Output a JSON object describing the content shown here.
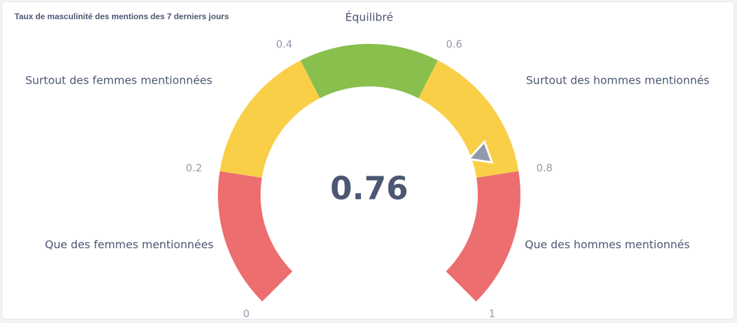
{
  "card": {
    "title": "Taux de masculinité des mentions des 7 derniers jours"
  },
  "chart_data": {
    "type": "gauge",
    "value": 0.76,
    "value_label": "0.76",
    "min": 0,
    "max": 1,
    "ticks": [
      {
        "value": 0,
        "label": "0"
      },
      {
        "value": 0.2,
        "label": "0.2"
      },
      {
        "value": 0.4,
        "label": "0.4"
      },
      {
        "value": 0.6,
        "label": "0.6"
      },
      {
        "value": 0.8,
        "label": "0.8"
      },
      {
        "value": 1,
        "label": "1"
      }
    ],
    "segments": [
      {
        "min": 0,
        "max": 0.2,
        "label": "Que des femmes mentionnées",
        "color": "#ed6e6e"
      },
      {
        "min": 0.2,
        "max": 0.4,
        "label": "Surtout des femmes mentionnées",
        "color": "#f9cf48"
      },
      {
        "min": 0.4,
        "max": 0.6,
        "label": "Équilibré",
        "color": "#88bf4d"
      },
      {
        "min": 0.6,
        "max": 0.8,
        "label": "Surtout des hommes mentionnés",
        "color": "#f9cf48"
      },
      {
        "min": 0.8,
        "max": 1,
        "label": "Que des hommes mentionnés",
        "color": "#ed6e6e"
      }
    ],
    "needle_color": "#949aab",
    "value_color": "#4c5773",
    "label_color": "#4c5773",
    "tick_color": "#949aab"
  }
}
